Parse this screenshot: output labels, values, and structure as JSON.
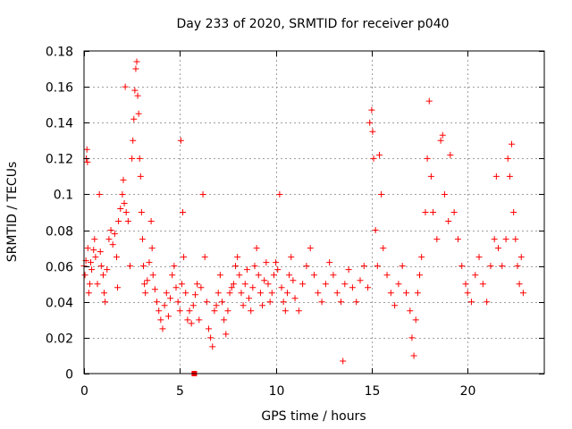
{
  "chart_data": {
    "type": "scatter",
    "title": "Day 233 of 2020, SRMTID for receiver p040",
    "xlabel": "GPS time / hours",
    "ylabel": "SRMTID / TECUs",
    "xlim": [
      0,
      24
    ],
    "ylim": [
      0,
      0.18
    ],
    "xticks": [
      0,
      5,
      10,
      15,
      20
    ],
    "xtick_labels": [
      "0",
      "5",
      "10",
      "15",
      "20"
    ],
    "yticks": [
      0,
      0.02,
      0.04,
      0.06,
      0.08,
      0.1,
      0.12,
      0.14,
      0.16,
      0.18
    ],
    "ytick_labels": [
      "0",
      "0.02",
      "0.04",
      "0.06",
      "0.08",
      "0.1",
      "0.12",
      "0.14",
      "0.16",
      "0.18"
    ],
    "grid": true,
    "marker": "+",
    "color": "#ff0000",
    "series": [
      {
        "name": "SRMTID",
        "points": [
          [
            0.0,
            0.06
          ],
          [
            0.05,
            0.055
          ],
          [
            0.1,
            0.063
          ],
          [
            0.12,
            0.12
          ],
          [
            0.15,
            0.125
          ],
          [
            0.18,
            0.118
          ],
          [
            0.2,
            0.07
          ],
          [
            0.25,
            0.045
          ],
          [
            0.3,
            0.05
          ],
          [
            0.35,
            0.062
          ],
          [
            0.4,
            0.058
          ],
          [
            0.5,
            0.069
          ],
          [
            0.55,
            0.075
          ],
          [
            0.6,
            0.065
          ],
          [
            0.7,
            0.05
          ],
          [
            0.8,
            0.1
          ],
          [
            0.85,
            0.068
          ],
          [
            0.9,
            0.06
          ],
          [
            1.0,
            0.055
          ],
          [
            1.05,
            0.045
          ],
          [
            1.1,
            0.04
          ],
          [
            1.2,
            0.058
          ],
          [
            1.3,
            0.075
          ],
          [
            1.4,
            0.08
          ],
          [
            1.5,
            0.072
          ],
          [
            1.6,
            0.078
          ],
          [
            1.7,
            0.065
          ],
          [
            1.75,
            0.048
          ],
          [
            1.8,
            0.085
          ],
          [
            1.9,
            0.092
          ],
          [
            2.0,
            0.1
          ],
          [
            2.05,
            0.108
          ],
          [
            2.1,
            0.095
          ],
          [
            2.15,
            0.16
          ],
          [
            2.2,
            0.09
          ],
          [
            2.3,
            0.085
          ],
          [
            2.4,
            0.06
          ],
          [
            2.5,
            0.12
          ],
          [
            2.55,
            0.13
          ],
          [
            2.6,
            0.142
          ],
          [
            2.65,
            0.158
          ],
          [
            2.7,
            0.17
          ],
          [
            2.75,
            0.174
          ],
          [
            2.8,
            0.155
          ],
          [
            2.85,
            0.145
          ],
          [
            2.9,
            0.12
          ],
          [
            2.95,
            0.11
          ],
          [
            3.0,
            0.09
          ],
          [
            3.05,
            0.075
          ],
          [
            3.1,
            0.06
          ],
          [
            3.15,
            0.05
          ],
          [
            3.2,
            0.045
          ],
          [
            3.3,
            0.052
          ],
          [
            3.4,
            0.062
          ],
          [
            3.5,
            0.085
          ],
          [
            3.55,
            0.07
          ],
          [
            3.6,
            0.055
          ],
          [
            3.7,
            0.047
          ],
          [
            3.8,
            0.04
          ],
          [
            3.9,
            0.035
          ],
          [
            4.0,
            0.03
          ],
          [
            4.1,
            0.025
          ],
          [
            4.2,
            0.038
          ],
          [
            4.3,
            0.045
          ],
          [
            4.4,
            0.032
          ],
          [
            4.5,
            0.042
          ],
          [
            4.6,
            0.055
          ],
          [
            4.7,
            0.06
          ],
          [
            4.8,
            0.048
          ],
          [
            4.9,
            0.04
          ],
          [
            5.0,
            0.035
          ],
          [
            5.05,
            0.13
          ],
          [
            5.1,
            0.05
          ],
          [
            5.15,
            0.09
          ],
          [
            5.2,
            0.065
          ],
          [
            5.3,
            0.045
          ],
          [
            5.4,
            0.03
          ],
          [
            5.5,
            0.035
          ],
          [
            5.6,
            0.028
          ],
          [
            5.7,
            0.038
          ],
          [
            5.8,
            0.044
          ],
          [
            5.9,
            0.05
          ],
          [
            6.0,
            0.03
          ],
          [
            6.1,
            0.048
          ],
          [
            6.2,
            0.1
          ],
          [
            6.3,
            0.065
          ],
          [
            6.4,
            0.04
          ],
          [
            6.5,
            0.025
          ],
          [
            6.6,
            0.02
          ],
          [
            6.7,
            0.015
          ],
          [
            6.8,
            0.035
          ],
          [
            6.9,
            0.038
          ],
          [
            7.0,
            0.045
          ],
          [
            7.1,
            0.055
          ],
          [
            7.2,
            0.04
          ],
          [
            7.3,
            0.03
          ],
          [
            7.4,
            0.022
          ],
          [
            7.5,
            0.035
          ],
          [
            7.6,
            0.045
          ],
          [
            7.7,
            0.048
          ],
          [
            7.8,
            0.05
          ],
          [
            7.9,
            0.06
          ],
          [
            8.0,
            0.065
          ],
          [
            8.1,
            0.055
          ],
          [
            8.2,
            0.045
          ],
          [
            8.3,
            0.038
          ],
          [
            8.4,
            0.05
          ],
          [
            8.5,
            0.058
          ],
          [
            8.6,
            0.042
          ],
          [
            8.7,
            0.035
          ],
          [
            8.8,
            0.048
          ],
          [
            8.9,
            0.06
          ],
          [
            9.0,
            0.07
          ],
          [
            9.1,
            0.055
          ],
          [
            9.2,
            0.045
          ],
          [
            9.3,
            0.038
          ],
          [
            9.4,
            0.052
          ],
          [
            9.5,
            0.062
          ],
          [
            9.6,
            0.05
          ],
          [
            9.7,
            0.04
          ],
          [
            9.8,
            0.045
          ],
          [
            9.9,
            0.055
          ],
          [
            10.0,
            0.062
          ],
          [
            10.1,
            0.058
          ],
          [
            10.2,
            0.1
          ],
          [
            10.3,
            0.048
          ],
          [
            10.4,
            0.04
          ],
          [
            10.5,
            0.035
          ],
          [
            10.6,
            0.045
          ],
          [
            10.7,
            0.055
          ],
          [
            10.8,
            0.065
          ],
          [
            10.9,
            0.052
          ],
          [
            11.0,
            0.042
          ],
          [
            11.2,
            0.035
          ],
          [
            11.4,
            0.05
          ],
          [
            11.6,
            0.06
          ],
          [
            11.8,
            0.07
          ],
          [
            12.0,
            0.055
          ],
          [
            12.2,
            0.045
          ],
          [
            12.4,
            0.04
          ],
          [
            12.6,
            0.05
          ],
          [
            12.8,
            0.062
          ],
          [
            13.0,
            0.055
          ],
          [
            13.2,
            0.045
          ],
          [
            13.4,
            0.04
          ],
          [
            13.5,
            0.007
          ],
          [
            13.6,
            0.05
          ],
          [
            13.8,
            0.058
          ],
          [
            14.0,
            0.048
          ],
          [
            14.2,
            0.04
          ],
          [
            14.4,
            0.052
          ],
          [
            14.6,
            0.06
          ],
          [
            14.8,
            0.048
          ],
          [
            14.9,
            0.14
          ],
          [
            15.0,
            0.147
          ],
          [
            15.05,
            0.135
          ],
          [
            15.1,
            0.12
          ],
          [
            15.2,
            0.08
          ],
          [
            15.3,
            0.06
          ],
          [
            15.4,
            0.122
          ],
          [
            15.5,
            0.1
          ],
          [
            15.6,
            0.07
          ],
          [
            15.8,
            0.055
          ],
          [
            16.0,
            0.045
          ],
          [
            16.2,
            0.038
          ],
          [
            16.4,
            0.05
          ],
          [
            16.6,
            0.06
          ],
          [
            16.8,
            0.045
          ],
          [
            17.0,
            0.035
          ],
          [
            17.1,
            0.02
          ],
          [
            17.2,
            0.01
          ],
          [
            17.3,
            0.03
          ],
          [
            17.4,
            0.045
          ],
          [
            17.5,
            0.055
          ],
          [
            17.6,
            0.065
          ],
          [
            17.8,
            0.09
          ],
          [
            17.9,
            0.12
          ],
          [
            18.0,
            0.152
          ],
          [
            18.1,
            0.11
          ],
          [
            18.2,
            0.09
          ],
          [
            18.4,
            0.075
          ],
          [
            18.6,
            0.13
          ],
          [
            18.7,
            0.133
          ],
          [
            18.8,
            0.1
          ],
          [
            19.0,
            0.085
          ],
          [
            19.1,
            0.122
          ],
          [
            19.3,
            0.09
          ],
          [
            19.5,
            0.075
          ],
          [
            19.7,
            0.06
          ],
          [
            19.9,
            0.05
          ],
          [
            20.0,
            0.045
          ],
          [
            20.2,
            0.04
          ],
          [
            20.4,
            0.055
          ],
          [
            20.6,
            0.065
          ],
          [
            20.8,
            0.05
          ],
          [
            21.0,
            0.04
          ],
          [
            21.2,
            0.06
          ],
          [
            21.4,
            0.075
          ],
          [
            21.5,
            0.11
          ],
          [
            21.6,
            0.07
          ],
          [
            21.8,
            0.06
          ],
          [
            22.0,
            0.075
          ],
          [
            22.1,
            0.12
          ],
          [
            22.2,
            0.11
          ],
          [
            22.3,
            0.128
          ],
          [
            22.4,
            0.09
          ],
          [
            22.5,
            0.075
          ],
          [
            22.6,
            0.06
          ],
          [
            22.7,
            0.05
          ],
          [
            22.8,
            0.065
          ],
          [
            22.9,
            0.045
          ]
        ]
      },
      {
        "name": "marker",
        "marker": "square",
        "points": [
          [
            5.75,
            0.0
          ]
        ]
      }
    ]
  }
}
